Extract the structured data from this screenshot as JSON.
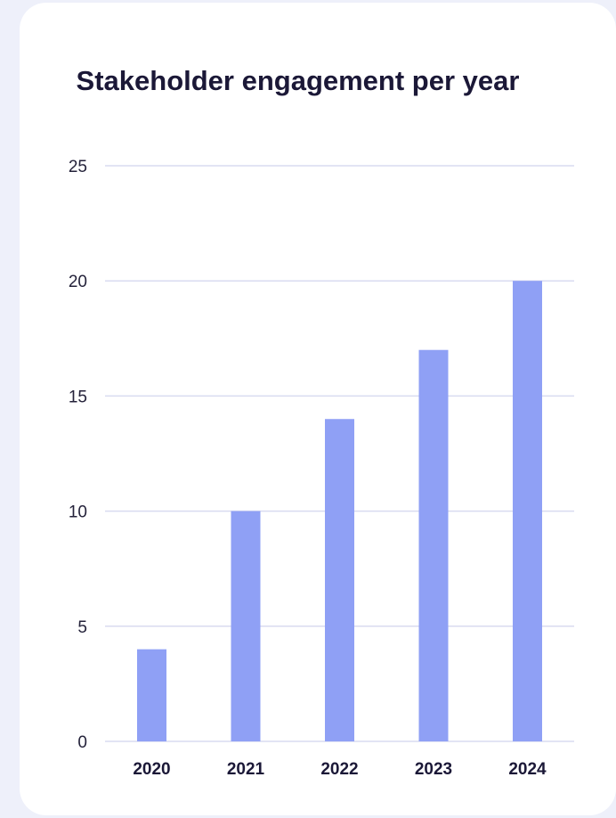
{
  "chart_data": {
    "type": "bar",
    "title": "Stakeholder engagement per year",
    "categories": [
      "2020",
      "2021",
      "2022",
      "2023",
      "2024"
    ],
    "values": [
      4,
      10,
      14,
      17,
      20
    ],
    "ylim": [
      0,
      25
    ],
    "yticks": [
      "0",
      "5",
      "10",
      "15",
      "20",
      "25"
    ],
    "grid": true,
    "bar_color": "#8fa0f5",
    "grid_color": "#d9dbf0"
  }
}
